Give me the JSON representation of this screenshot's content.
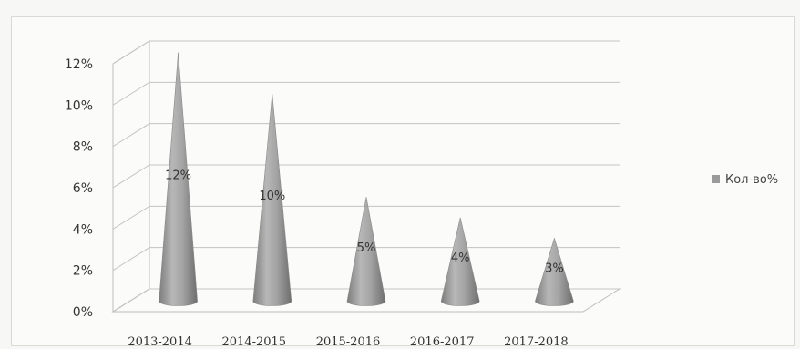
{
  "chart_data": {
    "type": "bar",
    "style": "3d-cone",
    "categories": [
      "2013-2014",
      "2014-2015",
      "2015-2016",
      "2016-2017",
      "2017-2018"
    ],
    "series": [
      {
        "name": "Кол-во%",
        "values": [
          12,
          10,
          5,
          4,
          3
        ],
        "color": "#9a9a9a"
      }
    ],
    "data_labels": [
      "12%",
      "10%",
      "5%",
      "4%",
      "3%"
    ],
    "y_ticks": [
      "0%",
      "2%",
      "4%",
      "6%",
      "8%",
      "10%",
      "12%"
    ],
    "ylim": [
      0,
      12
    ],
    "grid": true,
    "legend_position": "right"
  }
}
